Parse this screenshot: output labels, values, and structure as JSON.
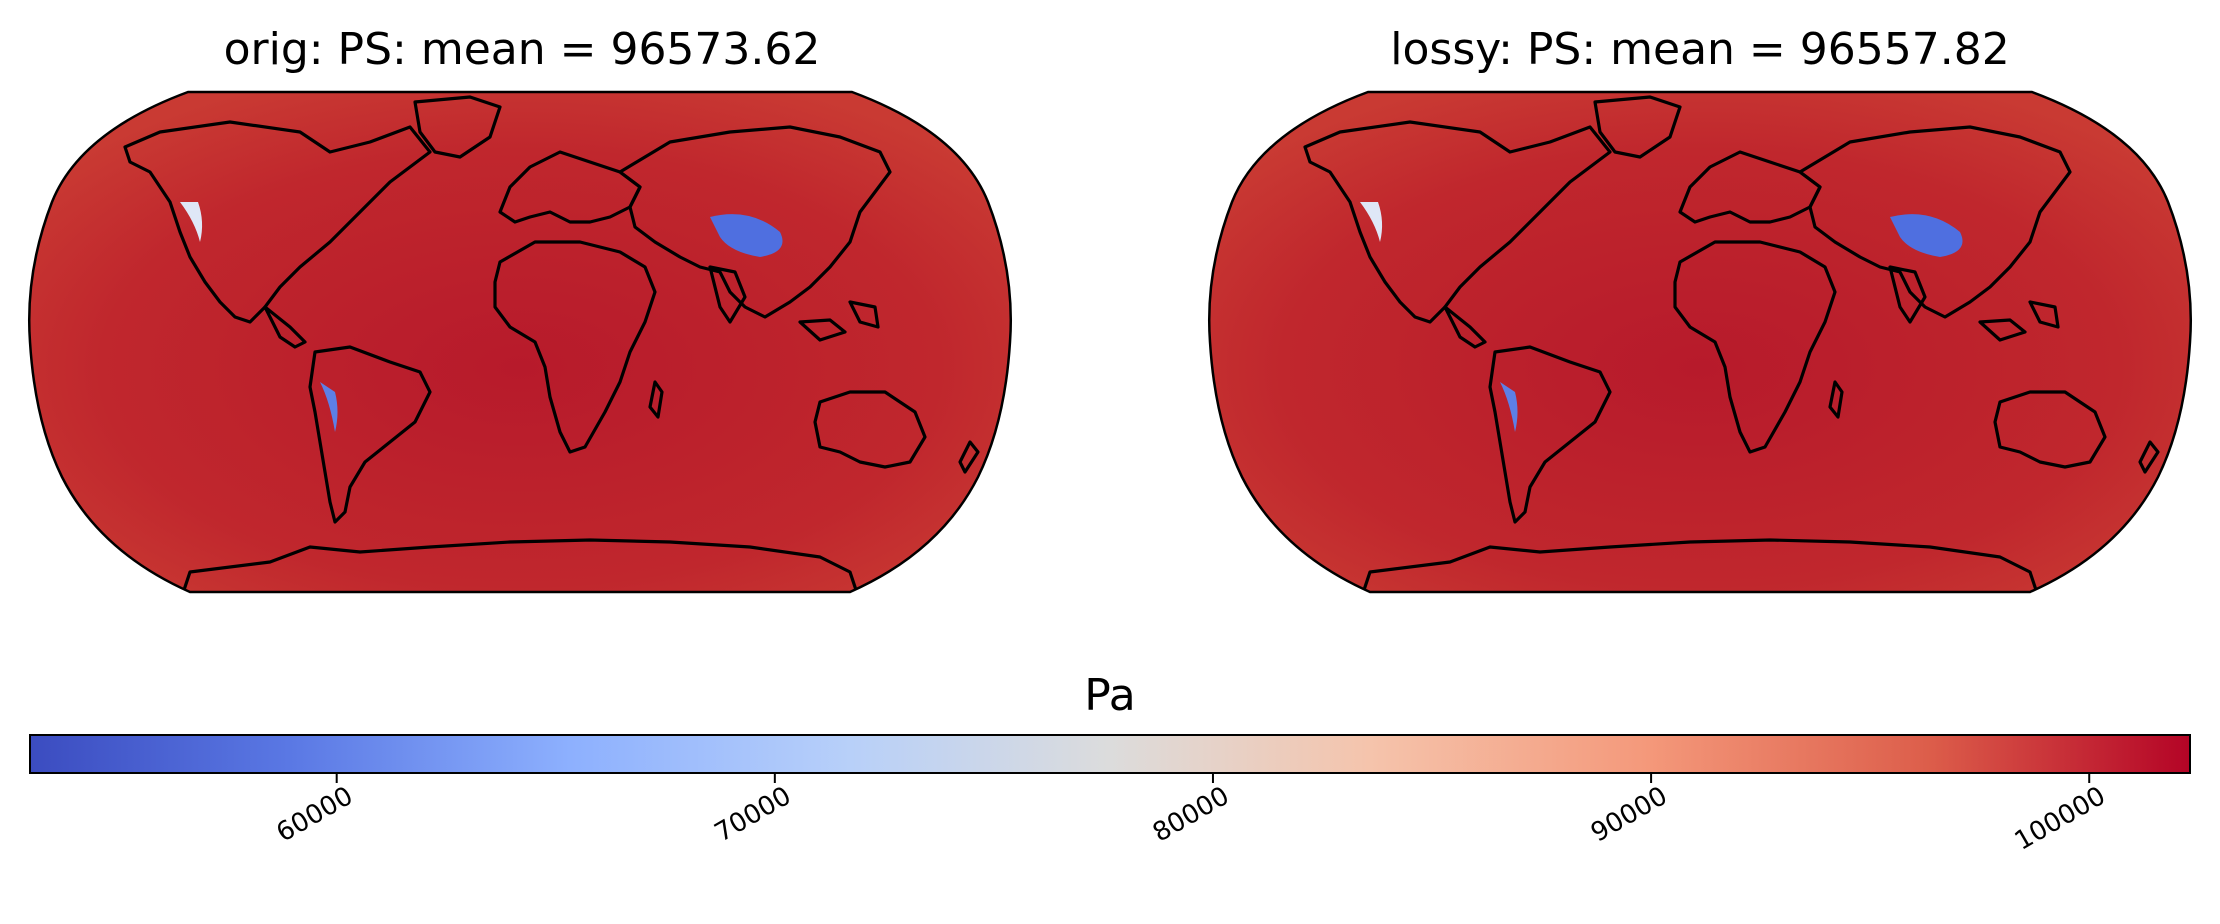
{
  "figure": {
    "panels": [
      {
        "id": "orig",
        "title": "orig: PS: mean =  96573.62"
      },
      {
        "id": "lossy",
        "title": "lossy: PS: mean =  96557.82"
      }
    ],
    "colorbar": {
      "label": "Pa",
      "colormap": "coolwarm",
      "vmin": 53000,
      "vmax": 102300,
      "ticks": [
        60000,
        70000,
        80000,
        90000,
        100000
      ],
      "tick_labels": [
        "60000",
        "70000",
        "80000",
        "90000",
        "100000"
      ],
      "colors": {
        "low": "#3b4cc0",
        "mid": "#dddddd",
        "high": "#b40426"
      }
    },
    "map": {
      "projection": "robinson",
      "ocean_color": "#c0272d",
      "land_color": "#ea8a6c",
      "high_terrain_color": "#4060d8",
      "coastline_color": "#000000"
    }
  }
}
